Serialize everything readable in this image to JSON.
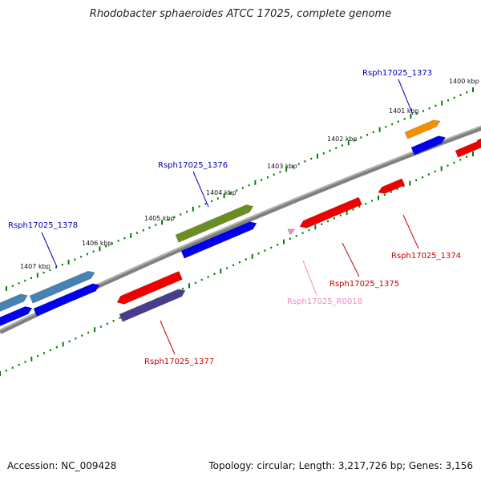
{
  "title": "Rhodobacter sphaeroides ATCC 17025, complete genome",
  "footer": {
    "accession": "Accession: NC_009428",
    "summary": "Topology: circular; Length: 3,217,726 bp; Genes: 3,156"
  },
  "kbp_ticks": [
    "1400 kbp",
    "1401 kbp",
    "1402 kbp",
    "1403 kbp",
    "1404 kbp",
    "1405 kbp",
    "1406 kbp",
    "1407 kbp"
  ],
  "gene_labels": [
    {
      "id": "Rsph17025_1373",
      "color": "#0000b4"
    },
    {
      "id": "Rsph17025_1374",
      "color": "#cc0000"
    },
    {
      "id": "Rsph17025_1375",
      "color": "#cc0000"
    },
    {
      "id": "Rsph17025_R0018",
      "color": "#ee88bb"
    },
    {
      "id": "Rsph17025_1376",
      "color": "#0000b4"
    },
    {
      "id": "Rsph17025_1377",
      "color": "#cc0000"
    },
    {
      "id": "Rsph17025_1378",
      "color": "#0000b4"
    }
  ],
  "colors": {
    "backbone": "#808080",
    "cds_blue": "#0000ee",
    "gene_red": "#ee0000",
    "gene_orange": "#f39000",
    "gene_green": "#6b8e23",
    "gene_steelblue": "#4682b4",
    "gene_slate": "#483d8b",
    "rna_pink": "#ee88bb",
    "tick_green": "#008000"
  }
}
